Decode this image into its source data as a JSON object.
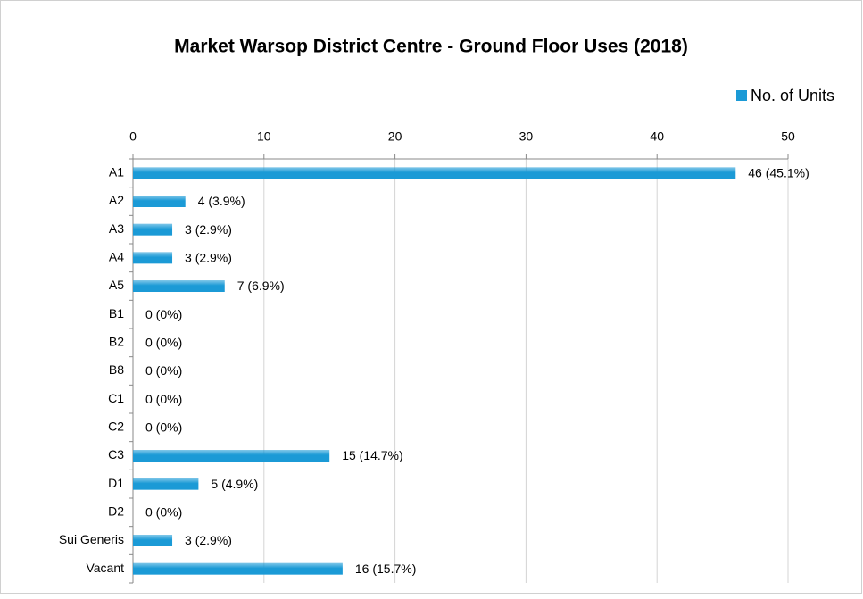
{
  "chart_data": {
    "type": "bar",
    "orientation": "horizontal",
    "title": "Market Warsop District Centre - Ground Floor Uses (2018)",
    "categories": [
      "A1",
      "A2",
      "A3",
      "A4",
      "A5",
      "B1",
      "B2",
      "B8",
      "C1",
      "C2",
      "C3",
      "D1",
      "D2",
      "Sui Generis",
      "Vacant"
    ],
    "series": [
      {
        "name": "No. of Units",
        "color": "#1b9ad6",
        "values": [
          46,
          4,
          3,
          3,
          7,
          0,
          0,
          0,
          0,
          0,
          15,
          5,
          0,
          3,
          16
        ],
        "value_labels": [
          "46 (45.1%)",
          "4 (3.9%)",
          "3 (2.9%)",
          "3 (2.9%)",
          "7 (6.9%)",
          "0 (0%)",
          "0 (0%)",
          "0 (0%)",
          "0 (0%)",
          "0 (0%)",
          "15 (14.7%)",
          "5 (4.9%)",
          "0 (0%)",
          "3 (2.9%)",
          "16 (15.7%)"
        ]
      }
    ],
    "xlim": [
      0,
      50
    ],
    "xticks": [
      0,
      10,
      20,
      30,
      40,
      50
    ],
    "grid": true,
    "legend": "top-right"
  }
}
